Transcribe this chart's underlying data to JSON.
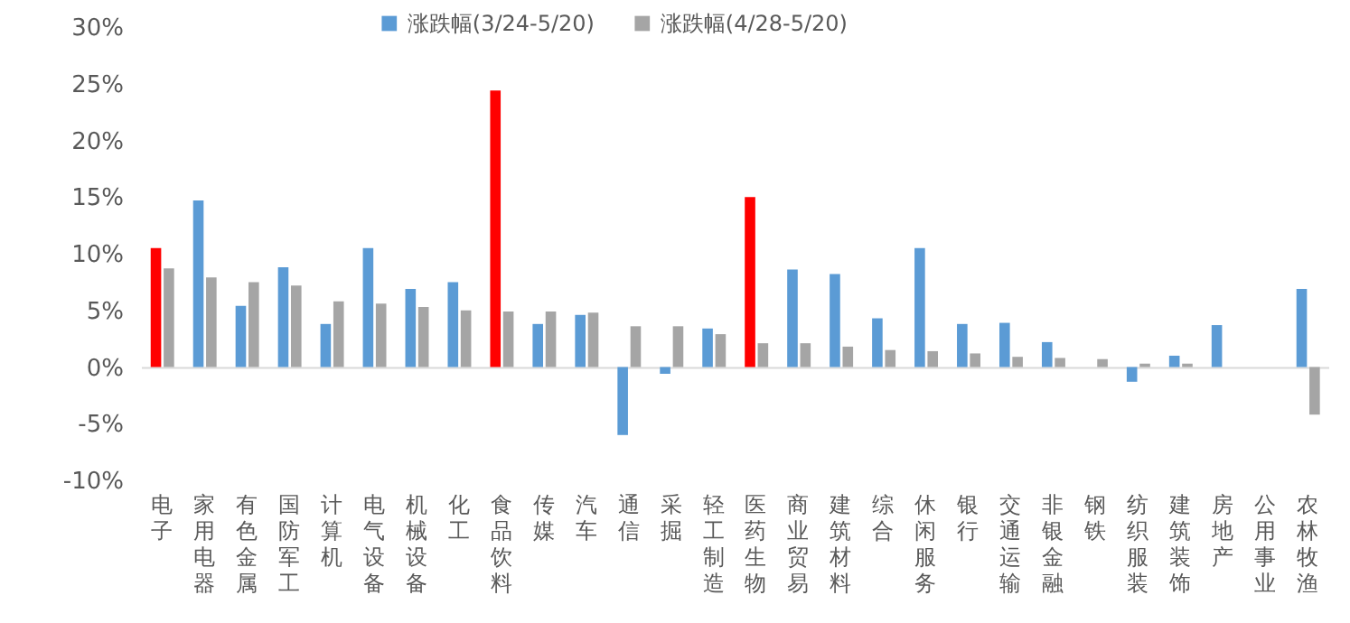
{
  "chart_data": {
    "type": "bar",
    "categories": [
      "电子",
      "家用电器",
      "有色金属",
      "国防军工",
      "计算机",
      "电气设备",
      "机械设备",
      "化工",
      "食品饮料",
      "传媒",
      "汽车",
      "通信",
      "采掘",
      "轻工制造",
      "医药生物",
      "商业贸易",
      "建筑材料",
      "综合",
      "休闲服务",
      "银行",
      "交通运输",
      "非银金融",
      "钢铁",
      "纺织服装",
      "建筑装饰",
      "房地产",
      "公用事业",
      "农林牧渔"
    ],
    "series": [
      {
        "name": "涨跌幅(3/24-5/20)",
        "color": "#5b9bd5",
        "colors": [
          "#ff0000",
          "#5b9bd5",
          "#5b9bd5",
          "#5b9bd5",
          "#5b9bd5",
          "#5b9bd5",
          "#5b9bd5",
          "#5b9bd5",
          "#ff0000",
          "#5b9bd5",
          "#5b9bd5",
          "#5b9bd5",
          "#5b9bd5",
          "#5b9bd5",
          "#ff0000",
          "#5b9bd5",
          "#5b9bd5",
          "#5b9bd5",
          "#5b9bd5",
          "#5b9bd5",
          "#5b9bd5",
          "#5b9bd5",
          null,
          "#5b9bd5",
          "#5b9bd5",
          "#5b9bd5",
          null,
          "#5b9bd5"
        ],
        "values": [
          10.5,
          14.7,
          5.4,
          8.8,
          3.8,
          10.5,
          6.9,
          7.5,
          24.4,
          3.8,
          4.6,
          -6.0,
          -0.6,
          3.4,
          15.0,
          8.6,
          8.2,
          4.3,
          10.5,
          3.8,
          3.9,
          2.2,
          null,
          -1.3,
          1.0,
          3.7,
          null,
          6.9
        ]
      },
      {
        "name": "涨跌幅(4/28-5/20)",
        "color": "#a5a5a5",
        "values": [
          8.7,
          7.9,
          7.5,
          7.2,
          5.8,
          5.6,
          5.3,
          5.0,
          4.9,
          4.9,
          4.8,
          3.6,
          3.6,
          2.9,
          2.1,
          2.1,
          1.8,
          1.5,
          1.4,
          1.2,
          0.9,
          0.8,
          0.7,
          0.3,
          0.3,
          null,
          null,
          -4.2
        ]
      }
    ],
    "ylim": [
      -10,
      30
    ],
    "yticks": [
      {
        "value": -10,
        "label": "-10%"
      },
      {
        "value": -5,
        "label": "-5%"
      },
      {
        "value": 0,
        "label": "0%"
      },
      {
        "value": 5,
        "label": "5%"
      },
      {
        "value": 10,
        "label": "10%"
      },
      {
        "value": 15,
        "label": "15%"
      },
      {
        "value": 20,
        "label": "20%"
      },
      {
        "value": 25,
        "label": "25%"
      },
      {
        "value": 30,
        "label": "30%"
      }
    ],
    "legend": "top"
  }
}
